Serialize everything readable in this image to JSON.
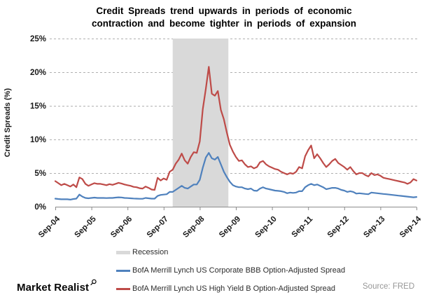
{
  "header": {
    "title_line1": "Credit Spreads trend upwards in periods of economic",
    "title_line2": "contraction and become tighter in periods of expansion"
  },
  "branding": {
    "logo_text": "Market Realist",
    "logo_icon": "magnifier-icon"
  },
  "footer": {
    "source": "Source: FRED"
  },
  "chart_data": {
    "type": "line",
    "title": "Credit Spreads trend upwards in periods of economic contraction and become tighter in periods of expansion",
    "ylabel": "Credit Spreads (%)",
    "ylim": [
      0,
      25
    ],
    "y_ticks_percent": [
      0,
      5,
      10,
      15,
      20,
      25
    ],
    "y_tick_suffix": "%",
    "grid": "horizontal dashed",
    "legend_position": "bottom-left",
    "x_months_range": [
      0,
      120
    ],
    "x_ticks": [
      {
        "month": 0,
        "label": "Sep-04"
      },
      {
        "month": 12,
        "label": "Sep-05"
      },
      {
        "month": 24,
        "label": "Sep-06"
      },
      {
        "month": 36,
        "label": "Sep-07"
      },
      {
        "month": 48,
        "label": "Sep-08"
      },
      {
        "month": 60,
        "label": "Sep-09"
      },
      {
        "month": 72,
        "label": "Sep-10"
      },
      {
        "month": 84,
        "label": "Sep-11"
      },
      {
        "month": 96,
        "label": "Sep-12"
      },
      {
        "month": 108,
        "label": "Sep-13"
      },
      {
        "month": 120,
        "label": "Sep-14"
      }
    ],
    "recession_band": {
      "label": "Recession",
      "color": "#d9d9d9",
      "start_month": 39,
      "end_month": 57.5,
      "start_date": "Dec-07",
      "end_date": "Jun-09"
    },
    "series": [
      {
        "name": "BofA Merrill Lynch US Corporate BBB Option-Adjusted Spread",
        "color": "#4f81bd",
        "unit": "%",
        "x_start": "Sep-04",
        "x_step_months": 1,
        "values": [
          1.2,
          1.15,
          1.1,
          1.1,
          1.1,
          1.05,
          1.15,
          1.2,
          1.8,
          1.5,
          1.3,
          1.25,
          1.3,
          1.35,
          1.3,
          1.3,
          1.3,
          1.28,
          1.3,
          1.3,
          1.35,
          1.4,
          1.38,
          1.3,
          1.28,
          1.25,
          1.22,
          1.2,
          1.18,
          1.18,
          1.3,
          1.25,
          1.2,
          1.2,
          1.6,
          1.75,
          1.8,
          1.85,
          2.2,
          2.2,
          2.5,
          2.8,
          3.1,
          2.8,
          2.7,
          3.0,
          3.3,
          3.3,
          4.0,
          5.8,
          7.3,
          8.0,
          7.2,
          7.0,
          7.4,
          6.3,
          5.2,
          4.4,
          3.7,
          3.2,
          3.0,
          2.9,
          2.9,
          2.7,
          2.6,
          2.7,
          2.4,
          2.35,
          2.7,
          2.9,
          2.7,
          2.6,
          2.5,
          2.4,
          2.35,
          2.3,
          2.2,
          2.0,
          2.1,
          2.05,
          2.1,
          2.3,
          2.3,
          2.9,
          3.2,
          3.4,
          3.2,
          3.3,
          3.1,
          2.9,
          2.6,
          2.7,
          2.8,
          2.8,
          2.7,
          2.5,
          2.4,
          2.2,
          2.3,
          2.2,
          1.95,
          2.0,
          1.95,
          1.9,
          1.85,
          2.1,
          2.05,
          2.0,
          1.95,
          1.9,
          1.85,
          1.8,
          1.75,
          1.7,
          1.65,
          1.6,
          1.55,
          1.5,
          1.45,
          1.4,
          1.45
        ]
      },
      {
        "name": "BofA Merrill Lynch US High Yield B Option-Adjusted Spread",
        "color": "#be4b48",
        "unit": "%",
        "x_start": "Sep-04",
        "x_step_months": 1,
        "values": [
          3.8,
          3.5,
          3.2,
          3.4,
          3.2,
          3.0,
          3.3,
          2.9,
          4.35,
          4.1,
          3.4,
          3.1,
          3.3,
          3.5,
          3.4,
          3.4,
          3.3,
          3.2,
          3.35,
          3.25,
          3.4,
          3.55,
          3.45,
          3.3,
          3.2,
          3.1,
          2.95,
          2.9,
          2.75,
          2.7,
          3.0,
          2.8,
          2.55,
          2.5,
          4.3,
          3.9,
          4.2,
          4.0,
          5.2,
          5.5,
          6.4,
          7.0,
          7.9,
          6.9,
          6.4,
          7.4,
          8.1,
          8.0,
          9.7,
          14.5,
          17.5,
          20.8,
          16.8,
          16.5,
          17.2,
          14.4,
          13.0,
          11.0,
          9.2,
          8.2,
          7.4,
          6.8,
          6.9,
          6.3,
          5.9,
          6.0,
          5.7,
          5.9,
          6.6,
          6.8,
          6.3,
          6.0,
          5.8,
          5.6,
          5.5,
          5.2,
          5.0,
          4.8,
          5.0,
          4.9,
          5.2,
          5.9,
          5.7,
          7.5,
          8.4,
          9.1,
          7.2,
          7.8,
          7.2,
          6.5,
          5.9,
          6.3,
          6.8,
          7.1,
          6.5,
          6.2,
          5.9,
          5.5,
          5.9,
          5.3,
          4.8,
          5.0,
          5.0,
          4.7,
          4.5,
          5.0,
          4.7,
          4.8,
          4.6,
          4.3,
          4.2,
          4.1,
          4.0,
          3.9,
          3.8,
          3.7,
          3.6,
          3.4,
          3.6,
          4.1,
          3.9
        ]
      }
    ]
  }
}
